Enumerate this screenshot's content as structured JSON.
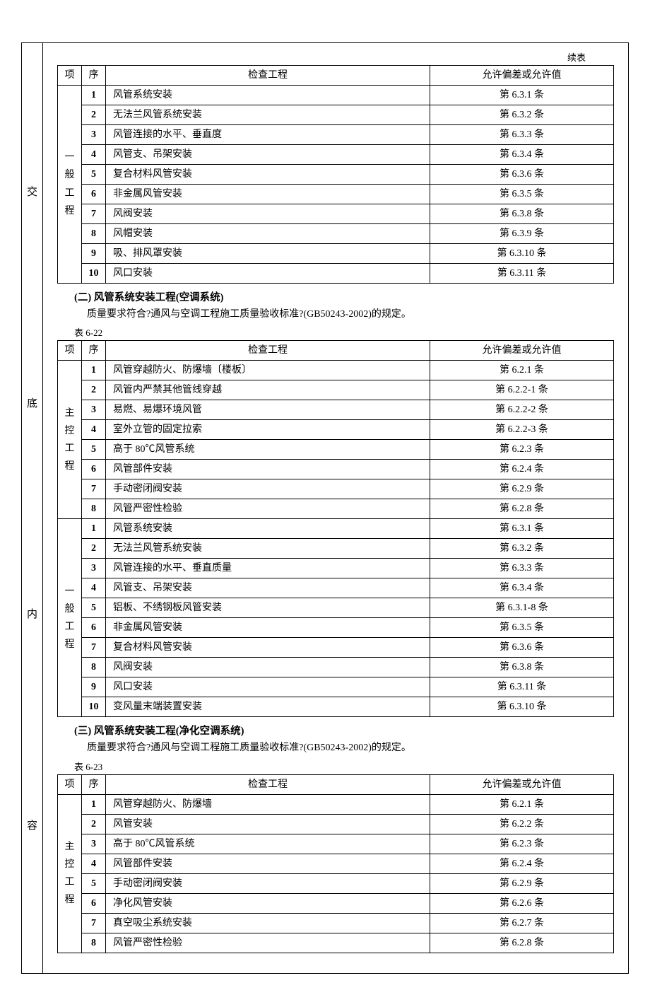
{
  "continued_label": "续表",
  "side_labels": [
    "交",
    "底",
    "内",
    "容"
  ],
  "headers": {
    "proj": "项",
    "seq": "序",
    "check": "检查工程",
    "allow": "允许偏差或允许值"
  },
  "table1": {
    "category_label": "一般工程",
    "rows": [
      {
        "seq": "1",
        "check": "风管系统安装",
        "allow": "第 6.3.1 条"
      },
      {
        "seq": "2",
        "check": "无法兰风管系统安装",
        "allow": "第 6.3.2 条"
      },
      {
        "seq": "3",
        "check": "风管连接的水平、垂直度",
        "allow": "第 6.3.3 条"
      },
      {
        "seq": "4",
        "check": "风管支、吊架安装",
        "allow": "第 6.3.4 条"
      },
      {
        "seq": "5",
        "check": "复合材料风管安装",
        "allow": "第 6.3.6 条"
      },
      {
        "seq": "6",
        "check": "非金属风管安装",
        "allow": "第 6.3.5 条"
      },
      {
        "seq": "7",
        "check": "风阀安装",
        "allow": "第 6.3.8 条"
      },
      {
        "seq": "8",
        "check": "风帽安装",
        "allow": "第 6.3.9 条"
      },
      {
        "seq": "9",
        "check": "吸、排风罩安装",
        "allow": "第 6.3.10 条"
      },
      {
        "seq": "10",
        "check": "风口安装",
        "allow": "第 6.3.11 条"
      }
    ]
  },
  "section2": {
    "title": "(二) 风管系统安装工程(空调系统)",
    "desc": "质量要求符合?通风与空调工程施工质量验收标准?(GB50243-2002)的规定。",
    "table_label": "表 6-22"
  },
  "table2": {
    "category1_label": "主控工程",
    "category2_label": "一般工程",
    "group1": [
      {
        "seq": "1",
        "check": "风管穿越防火、防爆墙〔楼板〕",
        "allow": "第 6.2.1 条"
      },
      {
        "seq": "2",
        "check": "风管内严禁其他管线穿越",
        "allow": "第 6.2.2-1 条"
      },
      {
        "seq": "3",
        "check": "易燃、易爆环境风管",
        "allow": "第 6.2.2-2 条"
      },
      {
        "seq": "4",
        "check": "室外立管的固定拉索",
        "allow": "第 6.2.2-3 条"
      },
      {
        "seq": "5",
        "check": "高于 80℃风管系统",
        "allow": "第 6.2.3 条"
      },
      {
        "seq": "6",
        "check": "风管部件安装",
        "allow": "第 6.2.4 条"
      },
      {
        "seq": "7",
        "check": "手动密闭阀安装",
        "allow": "第 6.2.9 条"
      },
      {
        "seq": "8",
        "check": "风管严密性检验",
        "allow": "第 6.2.8 条"
      }
    ],
    "group2": [
      {
        "seq": "1",
        "check": "风管系统安装",
        "allow": "第 6.3.1 条"
      },
      {
        "seq": "2",
        "check": "无法兰风管系统安装",
        "allow": "第 6.3.2 条"
      },
      {
        "seq": "3",
        "check": "风管连接的水平、垂直质量",
        "allow": "第 6.3.3 条"
      },
      {
        "seq": "4",
        "check": "风管支、吊架安装",
        "allow": "第 6.3.4 条"
      },
      {
        "seq": "5",
        "check": "铝板、不绣钢板风管安装",
        "allow": "第 6.3.1-8 条"
      },
      {
        "seq": "6",
        "check": "非金属风管安装",
        "allow": "第 6.3.5 条"
      },
      {
        "seq": "7",
        "check": "复合材料风管安装",
        "allow": "第 6.3.6 条"
      },
      {
        "seq": "8",
        "check": "风阀安装",
        "allow": "第 6.3.8 条"
      },
      {
        "seq": "9",
        "check": "风口安装",
        "allow": "第 6.3.11 条"
      },
      {
        "seq": "10",
        "check": "变风量末端装置安装",
        "allow": "第 6.3.10 条"
      }
    ]
  },
  "section3": {
    "title": "(三) 风管系统安装工程(净化空调系统)",
    "desc": "质量要求符合?通风与空调工程施工质量验收标准?(GB50243-2002)的规定。",
    "table_label": "表 6-23"
  },
  "table3": {
    "category_label": "主控工程",
    "rows": [
      {
        "seq": "1",
        "check": "风管穿越防火、防爆墙",
        "allow": "第 6.2.1 条"
      },
      {
        "seq": "2",
        "check": "风管安装",
        "allow": "第 6.2.2 条"
      },
      {
        "seq": "3",
        "check": "高于 80℃风管系统",
        "allow": "第 6.2.3 条"
      },
      {
        "seq": "4",
        "check": "风管部件安装",
        "allow": "第 6.2.4 条"
      },
      {
        "seq": "5",
        "check": "手动密闭阀安装",
        "allow": "第 6.2.9 条"
      },
      {
        "seq": "6",
        "check": "净化风管安装",
        "allow": "第 6.2.6 条"
      },
      {
        "seq": "7",
        "check": "真空吸尘系统安装",
        "allow": "第 6.2.7 条"
      },
      {
        "seq": "8",
        "check": "风管严密性检验",
        "allow": "第 6.2.8 条"
      }
    ]
  }
}
